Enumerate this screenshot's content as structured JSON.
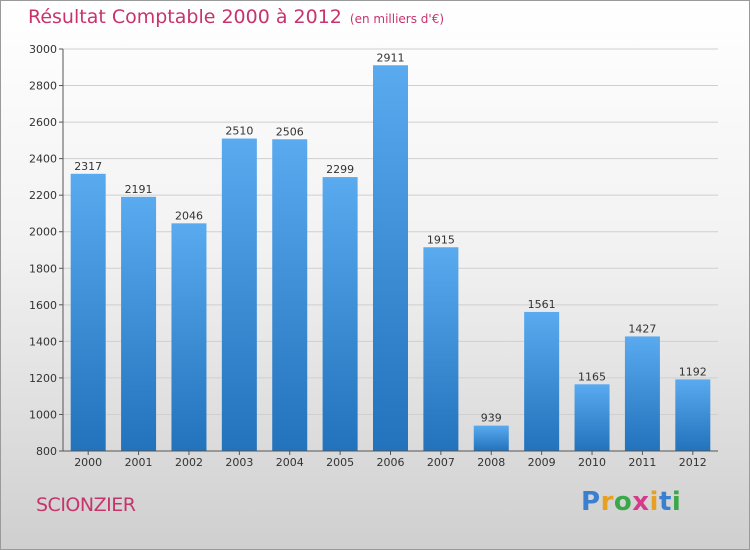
{
  "header": {
    "title": "Résultat Comptable 2000 à 2012",
    "unit": "(en milliers d'€)"
  },
  "footer": {
    "town": "SCIONZIER",
    "logo": "Proxiti",
    "logo_letters": [
      {
        "char": "P",
        "color": "#3a7fd0"
      },
      {
        "char": "r",
        "color": "#e8a020"
      },
      {
        "char": "o",
        "color": "#3aa848"
      },
      {
        "char": "x",
        "color": "#d83a8a"
      },
      {
        "char": "i",
        "color": "#e8a020"
      },
      {
        "char": "t",
        "color": "#3a7fd0"
      },
      {
        "char": "i",
        "color": "#3aa848"
      }
    ]
  },
  "chart_data": {
    "type": "bar",
    "title": "Résultat Comptable 2000 à 2012",
    "subtitle": "(en milliers d'€)",
    "categories": [
      "2000",
      "2001",
      "2002",
      "2003",
      "2004",
      "2005",
      "2006",
      "2007",
      "2008",
      "2009",
      "2010",
      "2011",
      "2012"
    ],
    "values": [
      2317,
      2191,
      2046,
      2510,
      2506,
      2299,
      2911,
      1915,
      939,
      1561,
      1165,
      1427,
      1192
    ],
    "ylim": [
      800,
      3000
    ],
    "yticks": [
      800,
      1000,
      1200,
      1400,
      1600,
      1800,
      2000,
      2200,
      2400,
      2600,
      2800,
      3000
    ],
    "grid": true,
    "bar_color": "#3f8fd6"
  }
}
